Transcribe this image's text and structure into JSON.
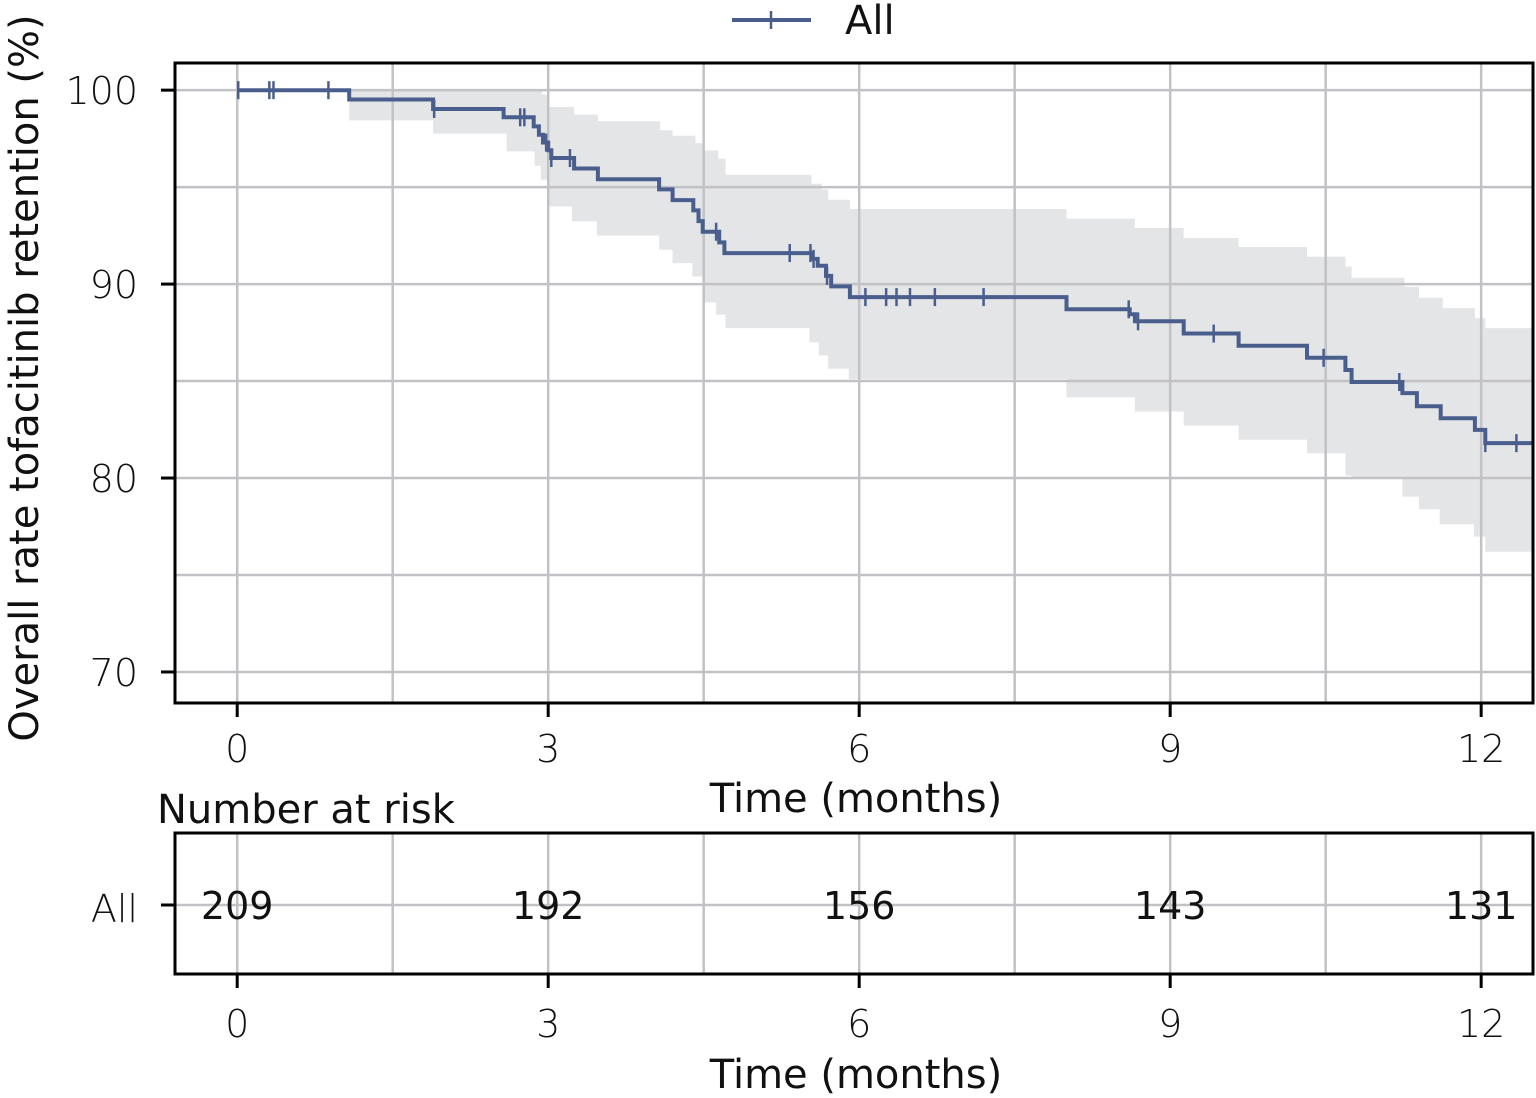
{
  "chart_data": {
    "type": "line",
    "subtype": "kaplan-meier",
    "title": "",
    "xlabel": "Time (months)",
    "ylabel": "Overall rate tofacitinib retention (%)",
    "xlim": [
      -0.6,
      12.5
    ],
    "ylim": [
      68.4,
      101.4
    ],
    "xticks": [
      0,
      3,
      6,
      9,
      12
    ],
    "xtick_labels": [
      "0",
      "3",
      "6",
      "9",
      "12"
    ],
    "xgrid_minor": [
      1.5,
      4.5,
      7.5,
      10.5
    ],
    "yticks": [
      70,
      80,
      90,
      100
    ],
    "ytick_labels": [
      "70",
      "80",
      "90",
      "100"
    ],
    "ygrid_minor": [
      75,
      85,
      95
    ],
    "grid": true,
    "legend": {
      "position": "top-center",
      "entries": [
        "All"
      ]
    },
    "colors": {
      "line": "#4a5e8e",
      "band": "#e4e5e7",
      "grid": "#c2c2c6",
      "axis": "#000000"
    },
    "series": [
      {
        "name": "All",
        "steps": [
          [
            0,
            100
          ],
          [
            1.08,
            99.52
          ],
          [
            1.89,
            99.03
          ],
          [
            2.57,
            98.6
          ],
          [
            2.86,
            98.13
          ],
          [
            2.91,
            97.7
          ],
          [
            2.95,
            97.3
          ],
          [
            3.0,
            96.9
          ],
          [
            3.03,
            96.5
          ],
          [
            3.25,
            95.96
          ],
          [
            3.48,
            95.41
          ],
          [
            4.07,
            94.88
          ],
          [
            4.2,
            94.33
          ],
          [
            4.4,
            93.8
          ],
          [
            4.45,
            93.25
          ],
          [
            4.49,
            92.7
          ],
          [
            4.65,
            92.15
          ],
          [
            4.7,
            91.6
          ],
          [
            5.54,
            91.3
          ],
          [
            5.6,
            90.95
          ],
          [
            5.68,
            90.42
          ],
          [
            5.73,
            89.88
          ],
          [
            5.91,
            89.33
          ],
          [
            8.0,
            88.7
          ],
          [
            8.61,
            88.45
          ],
          [
            8.66,
            88.08
          ],
          [
            9.13,
            87.45
          ],
          [
            9.66,
            86.82
          ],
          [
            10.32,
            86.2
          ],
          [
            10.69,
            85.57
          ],
          [
            10.75,
            84.95
          ],
          [
            11.24,
            84.38
          ],
          [
            11.38,
            83.7
          ],
          [
            11.61,
            83.08
          ],
          [
            11.94,
            82.48
          ],
          [
            12.04,
            81.8
          ]
        ],
        "end_time": 12.5,
        "censored_times": [
          0.01,
          0.31,
          0.35,
          0.88,
          1.9,
          2.73,
          2.77,
          2.98,
          3.03,
          3.21,
          4.62,
          5.33,
          5.53,
          5.56,
          5.69,
          6.06,
          6.26,
          6.36,
          6.49,
          6.73,
          7.2,
          8.6,
          8.69,
          9.42,
          10.48,
          11.21,
          12.04,
          12.34
        ],
        "ci_upper": [
          [
            1.08,
            100
          ],
          [
            2.94,
            99.77
          ],
          [
            3.0,
            99.13
          ],
          [
            3.25,
            98.74
          ],
          [
            3.48,
            98.4
          ],
          [
            4.08,
            97.93
          ],
          [
            4.2,
            97.65
          ],
          [
            4.42,
            97.27
          ],
          [
            4.49,
            96.89
          ],
          [
            4.64,
            96.47
          ],
          [
            4.71,
            95.64
          ],
          [
            5.54,
            95.17
          ],
          [
            5.64,
            94.87
          ],
          [
            5.7,
            94.35
          ],
          [
            5.91,
            93.87
          ],
          [
            8.0,
            93.37
          ],
          [
            8.66,
            92.89
          ],
          [
            9.13,
            92.37
          ],
          [
            9.66,
            91.91
          ],
          [
            10.32,
            91.42
          ],
          [
            10.69,
            90.9
          ],
          [
            10.75,
            90.33
          ],
          [
            11.26,
            89.86
          ],
          [
            11.4,
            89.3
          ],
          [
            11.63,
            88.76
          ],
          [
            11.94,
            88.24
          ],
          [
            12.04,
            87.73
          ]
        ],
        "ci_lower": [
          [
            1.08,
            98.44
          ],
          [
            1.89,
            97.76
          ],
          [
            2.6,
            96.84
          ],
          [
            2.87,
            96.1
          ],
          [
            2.93,
            95.38
          ],
          [
            3.0,
            94.0
          ],
          [
            3.23,
            93.23
          ],
          [
            3.47,
            92.5
          ],
          [
            4.07,
            91.77
          ],
          [
            4.2,
            91.08
          ],
          [
            4.39,
            90.39
          ],
          [
            4.49,
            89.05
          ],
          [
            4.62,
            88.42
          ],
          [
            4.71,
            87.73
          ],
          [
            5.52,
            87.0
          ],
          [
            5.61,
            86.32
          ],
          [
            5.7,
            85.63
          ],
          [
            5.9,
            85.1
          ],
          [
            8.0,
            84.17
          ],
          [
            8.66,
            83.43
          ],
          [
            9.13,
            82.71
          ],
          [
            9.66,
            81.97
          ],
          [
            10.32,
            81.28
          ],
          [
            10.69,
            80.13
          ],
          [
            10.75,
            80.0
          ],
          [
            11.24,
            79.04
          ],
          [
            11.4,
            78.39
          ],
          [
            11.6,
            77.62
          ],
          [
            11.93,
            76.98
          ],
          [
            12.04,
            76.2
          ]
        ]
      }
    ],
    "risk_table": {
      "title": "Number at risk",
      "row_label": "All",
      "times": [
        0,
        3,
        6,
        9,
        12
      ],
      "counts": [
        209,
        192,
        156,
        143,
        131
      ],
      "xlabel": "Time (months)",
      "xtick_labels": [
        "0",
        "3",
        "6",
        "9",
        "12"
      ]
    }
  }
}
